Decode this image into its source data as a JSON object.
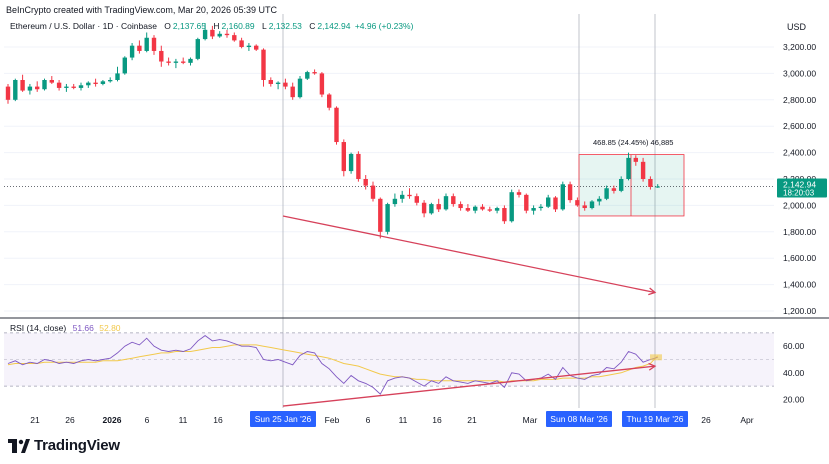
{
  "header": {
    "created_by": "BeInCrypto created with TradingView.com, Mar 20, 2026 05:39 UTC"
  },
  "legend": {
    "symbol": "Ethereum / U.S. Dollar · 1D · Coinbase",
    "o_label": "O",
    "o_value": "2,137.65",
    "h_label": "H",
    "h_value": "2,160.89",
    "l_label": "L",
    "l_value": "2,132.53",
    "c_label": "C",
    "c_value": "2,142.94",
    "change": "+4.96 (+0.23%)"
  },
  "price_axis": {
    "currency": "USD",
    "ticks": [
      "3,200.00",
      "3,000.00",
      "2,800.00",
      "2,600.00",
      "2,400.00",
      "2,200.00",
      "2,000.00",
      "1,800.00",
      "1,600.00",
      "1,400.00",
      "1,200.00"
    ],
    "current_price": "2,142.94",
    "countdown": "18:20:03"
  },
  "rsi": {
    "label": "RSI (14, close)",
    "value": "51.66",
    "ma_value": "52.80",
    "ticks": [
      "60.00",
      "40.00",
      "20.00"
    ]
  },
  "time_axis": {
    "ticks": [
      "21",
      "26",
      "2026",
      "6",
      "11",
      "16",
      "Feb",
      "6",
      "11",
      "16",
      "21",
      "Mar",
      "26",
      "Apr"
    ],
    "highlights": [
      "Sun 25 Jan '26",
      "Sun 08 Mar '26",
      "Thu 19 Mar '26"
    ]
  },
  "measure": {
    "text": "468.85 (24.45%) 46,885"
  },
  "brand": {
    "name": "TradingView"
  },
  "colors": {
    "up": "#089981",
    "down": "#f23645",
    "arrow": "#d6415a",
    "rsi_line": "#7e57c2",
    "rsi_ma": "#f2c94c",
    "rsi_band": "#7e57c2",
    "measure_fill": "#089981",
    "highlight": "#2962ff"
  },
  "chart_data": {
    "type": "candlestick",
    "title": "Ethereum / U.S. Dollar · 1D · Coinbase",
    "ylabel": "USD",
    "ylim": [
      1200,
      3300
    ],
    "candles": [
      {
        "o": 2900,
        "h": 2920,
        "l": 2770,
        "c": 2800
      },
      {
        "o": 2800,
        "h": 2960,
        "l": 2790,
        "c": 2950
      },
      {
        "o": 2950,
        "h": 2990,
        "l": 2860,
        "c": 2870
      },
      {
        "o": 2870,
        "h": 2920,
        "l": 2840,
        "c": 2900
      },
      {
        "o": 2900,
        "h": 2940,
        "l": 2860,
        "c": 2880
      },
      {
        "o": 2880,
        "h": 2960,
        "l": 2870,
        "c": 2950
      },
      {
        "o": 2950,
        "h": 2980,
        "l": 2920,
        "c": 2930
      },
      {
        "o": 2930,
        "h": 2950,
        "l": 2870,
        "c": 2890
      },
      {
        "o": 2890,
        "h": 2920,
        "l": 2860,
        "c": 2900
      },
      {
        "o": 2900,
        "h": 2920,
        "l": 2880,
        "c": 2890
      },
      {
        "o": 2890,
        "h": 2930,
        "l": 2870,
        "c": 2910
      },
      {
        "o": 2910,
        "h": 2940,
        "l": 2890,
        "c": 2930
      },
      {
        "o": 2930,
        "h": 2960,
        "l": 2900,
        "c": 2920
      },
      {
        "o": 2920,
        "h": 2950,
        "l": 2910,
        "c": 2940
      },
      {
        "o": 2940,
        "h": 2970,
        "l": 2930,
        "c": 2950
      },
      {
        "o": 2950,
        "h": 3050,
        "l": 2940,
        "c": 3000
      },
      {
        "o": 3000,
        "h": 3130,
        "l": 2990,
        "c": 3120
      },
      {
        "o": 3120,
        "h": 3230,
        "l": 3100,
        "c": 3210
      },
      {
        "o": 3210,
        "h": 3250,
        "l": 3150,
        "c": 3170
      },
      {
        "o": 3170,
        "h": 3310,
        "l": 3160,
        "c": 3270
      },
      {
        "o": 3270,
        "h": 3290,
        "l": 3140,
        "c": 3170
      },
      {
        "o": 3170,
        "h": 3210,
        "l": 3050,
        "c": 3090
      },
      {
        "o": 3090,
        "h": 3120,
        "l": 3060,
        "c": 3080
      },
      {
        "o": 3080,
        "h": 3110,
        "l": 3040,
        "c": 3090
      },
      {
        "o": 3090,
        "h": 3120,
        "l": 3070,
        "c": 3080
      },
      {
        "o": 3080,
        "h": 3120,
        "l": 3060,
        "c": 3110
      },
      {
        "o": 3110,
        "h": 3270,
        "l": 3100,
        "c": 3260
      },
      {
        "o": 3260,
        "h": 3380,
        "l": 3250,
        "c": 3330
      },
      {
        "o": 3330,
        "h": 3360,
        "l": 3260,
        "c": 3280
      },
      {
        "o": 3280,
        "h": 3320,
        "l": 3270,
        "c": 3300
      },
      {
        "o": 3300,
        "h": 3330,
        "l": 3270,
        "c": 3290
      },
      {
        "o": 3290,
        "h": 3310,
        "l": 3240,
        "c": 3250
      },
      {
        "o": 3250,
        "h": 3270,
        "l": 3190,
        "c": 3200
      },
      {
        "o": 3200,
        "h": 3230,
        "l": 3170,
        "c": 3210
      },
      {
        "o": 3210,
        "h": 3220,
        "l": 3170,
        "c": 3180
      },
      {
        "o": 3180,
        "h": 3190,
        "l": 2900,
        "c": 2950
      },
      {
        "o": 2950,
        "h": 2970,
        "l": 2900,
        "c": 2920
      },
      {
        "o": 2920,
        "h": 2940,
        "l": 2880,
        "c": 2930
      },
      {
        "o": 2930,
        "h": 2960,
        "l": 2880,
        "c": 2900
      },
      {
        "o": 2900,
        "h": 2930,
        "l": 2800,
        "c": 2820
      },
      {
        "o": 2820,
        "h": 2980,
        "l": 2810,
        "c": 2960
      },
      {
        "o": 2960,
        "h": 3020,
        "l": 2950,
        "c": 3010
      },
      {
        "o": 3010,
        "h": 3030,
        "l": 2990,
        "c": 3000
      },
      {
        "o": 3000,
        "h": 3010,
        "l": 2820,
        "c": 2840
      },
      {
        "o": 2840,
        "h": 2850,
        "l": 2720,
        "c": 2740
      },
      {
        "o": 2740,
        "h": 2750,
        "l": 2460,
        "c": 2480
      },
      {
        "o": 2480,
        "h": 2500,
        "l": 2220,
        "c": 2260
      },
      {
        "o": 2260,
        "h": 2400,
        "l": 2240,
        "c": 2390
      },
      {
        "o": 2390,
        "h": 2410,
        "l": 2180,
        "c": 2200
      },
      {
        "o": 2200,
        "h": 2230,
        "l": 2120,
        "c": 2150
      },
      {
        "o": 2150,
        "h": 2180,
        "l": 2030,
        "c": 2050
      },
      {
        "o": 2050,
        "h": 2060,
        "l": 1750,
        "c": 1800
      },
      {
        "o": 1800,
        "h": 2020,
        "l": 1780,
        "c": 2010
      },
      {
        "o": 2010,
        "h": 2090,
        "l": 1990,
        "c": 2050
      },
      {
        "o": 2050,
        "h": 2110,
        "l": 2020,
        "c": 2080
      },
      {
        "o": 2080,
        "h": 2130,
        "l": 2050,
        "c": 2070
      },
      {
        "o": 2070,
        "h": 2090,
        "l": 2000,
        "c": 2020
      },
      {
        "o": 2020,
        "h": 2040,
        "l": 1910,
        "c": 1940
      },
      {
        "o": 1940,
        "h": 2020,
        "l": 1930,
        "c": 2010
      },
      {
        "o": 2010,
        "h": 2050,
        "l": 1950,
        "c": 1970
      },
      {
        "o": 1970,
        "h": 2090,
        "l": 1960,
        "c": 2070
      },
      {
        "o": 2070,
        "h": 2090,
        "l": 1990,
        "c": 2010
      },
      {
        "o": 2010,
        "h": 2030,
        "l": 1960,
        "c": 1980
      },
      {
        "o": 1980,
        "h": 2010,
        "l": 1950,
        "c": 1960
      },
      {
        "o": 1960,
        "h": 2000,
        "l": 1940,
        "c": 1990
      },
      {
        "o": 1990,
        "h": 2010,
        "l": 1960,
        "c": 1970
      },
      {
        "o": 1970,
        "h": 1990,
        "l": 1950,
        "c": 1960
      },
      {
        "o": 1960,
        "h": 1990,
        "l": 1940,
        "c": 1980
      },
      {
        "o": 1980,
        "h": 2000,
        "l": 1860,
        "c": 1880
      },
      {
        "o": 1880,
        "h": 2120,
        "l": 1870,
        "c": 2100
      },
      {
        "o": 2100,
        "h": 2120,
        "l": 2060,
        "c": 2080
      },
      {
        "o": 2080,
        "h": 2090,
        "l": 1940,
        "c": 1960
      },
      {
        "o": 1960,
        "h": 2000,
        "l": 1930,
        "c": 1980
      },
      {
        "o": 1980,
        "h": 2010,
        "l": 1960,
        "c": 1990
      },
      {
        "o": 1990,
        "h": 2080,
        "l": 1980,
        "c": 2060
      },
      {
        "o": 2060,
        "h": 2070,
        "l": 1950,
        "c": 1970
      },
      {
        "o": 1970,
        "h": 2180,
        "l": 1960,
        "c": 2160
      },
      {
        "o": 2160,
        "h": 2180,
        "l": 2020,
        "c": 2040
      },
      {
        "o": 2040,
        "h": 2060,
        "l": 1990,
        "c": 2000
      },
      {
        "o": 2000,
        "h": 2030,
        "l": 1960,
        "c": 1980
      },
      {
        "o": 1980,
        "h": 2040,
        "l": 1970,
        "c": 2030
      },
      {
        "o": 2030,
        "h": 2070,
        "l": 2000,
        "c": 2050
      },
      {
        "o": 2050,
        "h": 2150,
        "l": 2040,
        "c": 2130
      },
      {
        "o": 2130,
        "h": 2150,
        "l": 2090,
        "c": 2110
      },
      {
        "o": 2110,
        "h": 2220,
        "l": 2100,
        "c": 2200
      },
      {
        "o": 2200,
        "h": 2400,
        "l": 2190,
        "c": 2360
      },
      {
        "o": 2360,
        "h": 2380,
        "l": 2300,
        "c": 2330
      },
      {
        "o": 2330,
        "h": 2360,
        "l": 2180,
        "c": 2200
      },
      {
        "o": 2200,
        "h": 2220,
        "l": 2120,
        "c": 2140
      },
      {
        "o": 2137.65,
        "h": 2160.89,
        "l": 2132.53,
        "c": 2142.94
      }
    ],
    "rsi_values": [
      47,
      49,
      46,
      48,
      47,
      50,
      49,
      47,
      48,
      47,
      49,
      50,
      49,
      50,
      51,
      55,
      60,
      63,
      61,
      66,
      60,
      57,
      56,
      57,
      56,
      58,
      64,
      68,
      64,
      65,
      64,
      62,
      60,
      60,
      59,
      50,
      49,
      50,
      48,
      46,
      53,
      56,
      55,
      47,
      43,
      37,
      32,
      38,
      34,
      32,
      29,
      24,
      34,
      36,
      37,
      36,
      33,
      30,
      34,
      32,
      37,
      34,
      33,
      32,
      34,
      33,
      32,
      34,
      29,
      40,
      39,
      34,
      35,
      36,
      39,
      35,
      44,
      38,
      36,
      35,
      38,
      39,
      44,
      43,
      48,
      56,
      54,
      48,
      50,
      51.66
    ],
    "rsi_ma_values": [
      46,
      47,
      47,
      47,
      47,
      48,
      48,
      48,
      48,
      48,
      48,
      48,
      48,
      49,
      49,
      49,
      50,
      51,
      52,
      53,
      54,
      55,
      55,
      56,
      56,
      56,
      57,
      58,
      59,
      59,
      60,
      61,
      61,
      61,
      61,
      60,
      59,
      58,
      57,
      56,
      55,
      54,
      53,
      52,
      51,
      49,
      47,
      46,
      45,
      43,
      41,
      39,
      38,
      37,
      37,
      36,
      35,
      35,
      34,
      34,
      34,
      34,
      34,
      34,
      34,
      34,
      34,
      34,
      33,
      34,
      34,
      34,
      34,
      35,
      35,
      35,
      36,
      36,
      36,
      36,
      37,
      37,
      38,
      39,
      40,
      42,
      44,
      45,
      47,
      52.8
    ],
    "rsi_ylim": [
      10,
      75
    ],
    "rsi_band": [
      30,
      70
    ],
    "annotations": [
      {
        "type": "down_arrow",
        "from_price": 1920,
        "to_price": 1340
      },
      {
        "type": "up_arrow_rsi",
        "from_rsi": 15,
        "to_rsi": 45
      },
      {
        "type": "measure_box",
        "low": 1920,
        "high": 2385,
        "text": "468.85 (24.45%) 46,885"
      }
    ]
  }
}
